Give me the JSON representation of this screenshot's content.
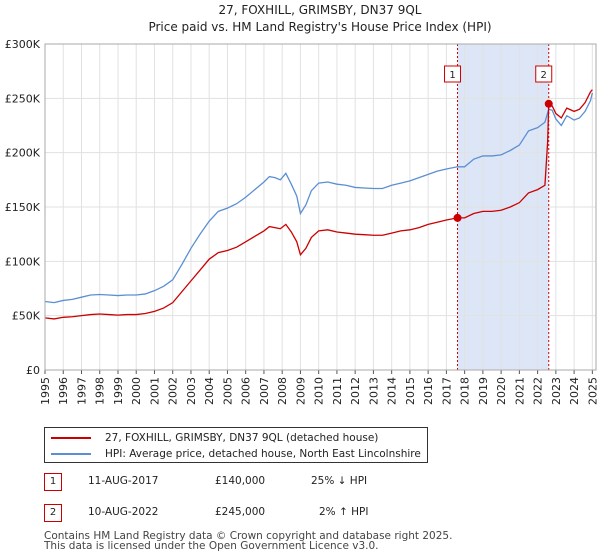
{
  "chart_data": {
    "type": "line",
    "title": "27, FOXHILL, GRIMSBY, DN37 9QL",
    "subtitle": "Price paid vs. HM Land Registry's House Price Index (HPI)",
    "xlabel": "",
    "ylabel": "",
    "xlim": [
      1995.0,
      2025.2
    ],
    "ylim": [
      0,
      300000
    ],
    "y_ticks": [
      0,
      50000,
      100000,
      150000,
      200000,
      250000,
      300000
    ],
    "y_tick_labels": [
      "£0",
      "£50K",
      "£100K",
      "£150K",
      "£200K",
      "£250K",
      "£300K"
    ],
    "x_ticks": [
      "1995",
      "1996",
      "1997",
      "1998",
      "1999",
      "2000",
      "2001",
      "2002",
      "2003",
      "2004",
      "2005",
      "2006",
      "2007",
      "2008",
      "2009",
      "2010",
      "2011",
      "2012",
      "2013",
      "2014",
      "2015",
      "2016",
      "2017",
      "2018",
      "2019",
      "2020",
      "2021",
      "2022",
      "2023",
      "2024",
      "2025"
    ],
    "grid": true,
    "series": [
      {
        "name": "27, FOXHILL, GRIMSBY, DN37 9QL (detached house)",
        "color": "#cc0000",
        "x": [
          1995.0,
          1995.5,
          1996.0,
          1996.5,
          1997.0,
          1997.5,
          1998.0,
          1998.5,
          1999.0,
          1999.5,
          2000.0,
          2000.5,
          2001.0,
          2001.5,
          2002.0,
          2002.5,
          2003.0,
          2003.5,
          2004.0,
          2004.5,
          2005.0,
          2005.5,
          2006.0,
          2006.5,
          2007.0,
          2007.3,
          2007.6,
          2007.9,
          2008.2,
          2008.5,
          2008.8,
          2009.0,
          2009.3,
          2009.6,
          2010.0,
          2010.5,
          2011.0,
          2011.5,
          2012.0,
          2012.5,
          2013.0,
          2013.5,
          2014.0,
          2014.5,
          2015.0,
          2015.5,
          2016.0,
          2016.5,
          2017.0,
          2017.61,
          2018.0,
          2018.5,
          2019.0,
          2019.5,
          2020.0,
          2020.5,
          2021.0,
          2021.5,
          2022.0,
          2022.4,
          2022.55,
          2022.61,
          2022.8,
          2023.0,
          2023.3,
          2023.6,
          2024.0,
          2024.3,
          2024.6,
          2024.9,
          2025.0
        ],
        "values": [
          48000,
          47000,
          48500,
          49000,
          50000,
          51000,
          51500,
          51000,
          50500,
          51000,
          51000,
          52000,
          54000,
          57000,
          62000,
          72000,
          82000,
          92000,
          102000,
          108000,
          110000,
          113000,
          118000,
          123000,
          128000,
          132000,
          131000,
          130000,
          134000,
          127000,
          118000,
          106000,
          112000,
          122000,
          128000,
          129000,
          127000,
          126000,
          125000,
          124500,
          124000,
          124000,
          126000,
          128000,
          129000,
          131000,
          134000,
          136000,
          138000,
          140000,
          140000,
          144000,
          146000,
          146000,
          147000,
          150000,
          154000,
          163000,
          166000,
          170000,
          210000,
          245000,
          243000,
          236000,
          232000,
          241000,
          238000,
          240000,
          246000,
          256000,
          258000
        ]
      },
      {
        "name": "HPI: Average price, detached house, North East Lincolnshire",
        "color": "#5b8fd4",
        "x": [
          1995.0,
          1995.5,
          1996.0,
          1996.5,
          1997.0,
          1997.5,
          1998.0,
          1998.5,
          1999.0,
          1999.5,
          2000.0,
          2000.5,
          2001.0,
          2001.5,
          2002.0,
          2002.5,
          2003.0,
          2003.5,
          2004.0,
          2004.5,
          2005.0,
          2005.5,
          2006.0,
          2006.5,
          2007.0,
          2007.3,
          2007.6,
          2007.9,
          2008.2,
          2008.5,
          2008.8,
          2009.0,
          2009.3,
          2009.6,
          2010.0,
          2010.5,
          2011.0,
          2011.5,
          2012.0,
          2012.5,
          2013.0,
          2013.5,
          2014.0,
          2014.5,
          2015.0,
          2015.5,
          2016.0,
          2016.5,
          2017.0,
          2017.61,
          2018.0,
          2018.5,
          2019.0,
          2019.5,
          2020.0,
          2020.5,
          2021.0,
          2021.5,
          2022.0,
          2022.4,
          2022.61,
          2022.8,
          2023.0,
          2023.3,
          2023.6,
          2024.0,
          2024.3,
          2024.6,
          2024.9,
          2025.0
        ],
        "values": [
          63000,
          62000,
          64000,
          65000,
          67000,
          69000,
          69500,
          69000,
          68500,
          69000,
          69000,
          70000,
          73000,
          77000,
          83000,
          97000,
          112000,
          125000,
          137000,
          146000,
          149000,
          153000,
          159000,
          166000,
          173000,
          178000,
          177000,
          175000,
          181000,
          171000,
          160000,
          144000,
          152000,
          165000,
          172000,
          173000,
          171000,
          170000,
          168000,
          167500,
          167000,
          167000,
          170000,
          172000,
          174000,
          177000,
          180000,
          183000,
          185000,
          187000,
          187000,
          194000,
          197000,
          197000,
          198000,
          202000,
          207000,
          220000,
          223000,
          228000,
          240000,
          239000,
          231000,
          225000,
          234000,
          230000,
          232000,
          238000,
          248000,
          255000
        ]
      }
    ],
    "markers": [
      {
        "id": "1",
        "x": 2017.61,
        "value": 140000,
        "color": "#cc0000"
      },
      {
        "id": "2",
        "x": 2022.61,
        "value": 245000,
        "color": "#cc0000"
      }
    ],
    "shaded_band": {
      "from": 2017.61,
      "to": 2022.61,
      "color": "#dde6f7"
    }
  },
  "legend": {
    "items": [
      {
        "label": "27, FOXHILL, GRIMSBY, DN37 9QL (detached house)",
        "color": "#cc0000"
      },
      {
        "label": "HPI: Average price, detached house, North East Lincolnshire",
        "color": "#5b8fd4"
      }
    ]
  },
  "sales": [
    {
      "num": "1",
      "date": "11-AUG-2017",
      "price": "£140,000",
      "hpi": "25% ↓ HPI"
    },
    {
      "num": "2",
      "date": "10-AUG-2022",
      "price": "£245,000",
      "hpi": "2% ↑ HPI"
    }
  ],
  "footer": {
    "line1": "Contains HM Land Registry data © Crown copyright and database right 2025.",
    "line2": "This data is licensed under the Open Government Licence v3.0."
  }
}
